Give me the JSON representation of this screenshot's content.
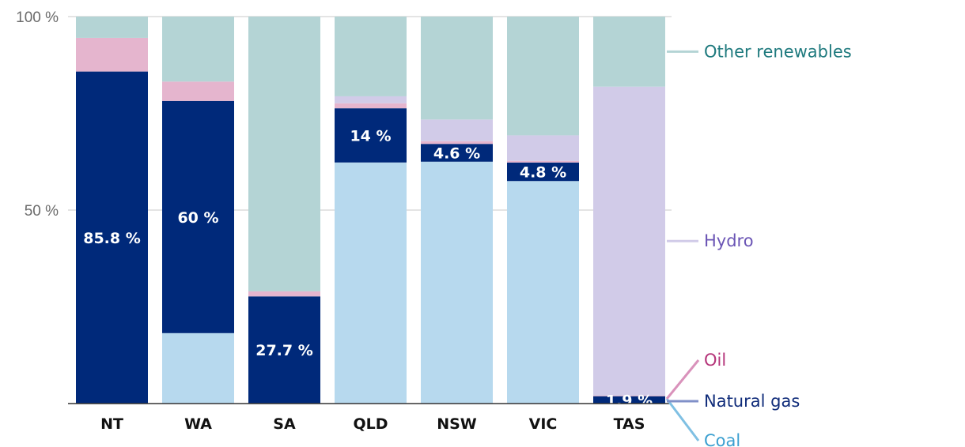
{
  "chart_data": {
    "type": "bar",
    "stacked": true,
    "percent_stacked": true,
    "categories": [
      "NT",
      "WA",
      "SA",
      "QLD",
      "NSW",
      "VIC",
      "TAS"
    ],
    "series": [
      {
        "name": "Coal",
        "color": "#b7d9ee",
        "values": [
          0,
          18.2,
          0,
          62.3,
          62.5,
          57.5,
          0
        ]
      },
      {
        "name": "Natural gas",
        "color": "#00297a",
        "values": [
          85.8,
          60,
          27.7,
          14,
          4.6,
          4.8,
          1.9
        ]
      },
      {
        "name": "Oil",
        "color": "#e5b5ce",
        "values": [
          8.7,
          5,
          1.3,
          1.3,
          0.7,
          0.4,
          0.2
        ]
      },
      {
        "name": "Hydro",
        "color": "#d1cbe8",
        "values": [
          0,
          0,
          0,
          1.8,
          5.6,
          6.6,
          79.8
        ]
      },
      {
        "name": "Other renewables",
        "color": "#b4d4d5",
        "values": [
          5.5,
          16.8,
          71,
          20.6,
          26.6,
          30.7,
          18.1
        ]
      }
    ],
    "data_labels": [
      "85.8 %",
      "60 %",
      "27.7 %",
      "14 %",
      "4.6 %",
      "4.8 %",
      "1.9 %"
    ],
    "y_ticks": [
      "100 %",
      "50 %"
    ],
    "y_tick_values": [
      100,
      50
    ],
    "ylim": [
      0,
      100
    ],
    "legend_colors": {
      "Other renewables": "#1f7a7e",
      "Hydro": "#6b55b5",
      "Oil": "#b5357a",
      "Natural gas": "#102c7a",
      "Coal": "#3a9fd0"
    },
    "legend_placement": "right (direct labels)",
    "grid": true,
    "title": "",
    "xlabel": "",
    "ylabel": ""
  }
}
